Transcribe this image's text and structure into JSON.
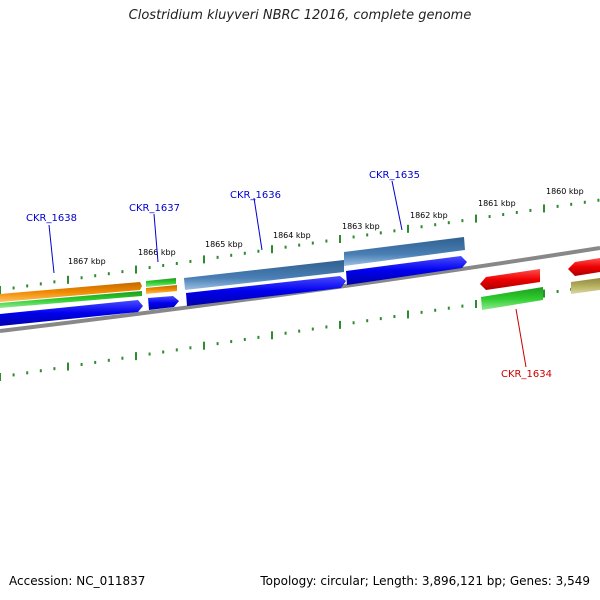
{
  "header": {
    "title": "Clostridium kluyveri NBRC 12016, complete genome"
  },
  "footer": {
    "accession": "Accession: NC_011837",
    "summary": "Topology: circular; Length: 3,896,121 bp; Genes: 3,549"
  },
  "scale": {
    "labels": [
      "1867 kbp",
      "1866 kbp",
      "1865 kbp",
      "1864 kbp",
      "1863 kbp",
      "1862 kbp",
      "1861 kbp",
      "1860 kbp"
    ],
    "tick_color": "#2e8b2e"
  },
  "genes": [
    {
      "id": "CKR_1638",
      "label": "CKR_1638",
      "strand": "forward",
      "label_color": "#0000cc"
    },
    {
      "id": "CKR_1637",
      "label": "CKR_1637",
      "strand": "forward",
      "label_color": "#0000cc"
    },
    {
      "id": "CKR_1636",
      "label": "CKR_1636",
      "strand": "forward",
      "label_color": "#0000cc"
    },
    {
      "id": "CKR_1635",
      "label": "CKR_1635",
      "strand": "forward",
      "label_color": "#0000cc"
    },
    {
      "id": "CKR_1634",
      "label": "CKR_1634",
      "strand": "reverse",
      "label_color": "#cc0000"
    }
  ],
  "colors": {
    "cds_blue": "#0000ee",
    "steelblue": "#4a7fb5",
    "orange": "#f08a00",
    "green": "#2ecc2e",
    "red": "#ee0000",
    "olive": "#b5b060",
    "backbone": "#888888"
  }
}
